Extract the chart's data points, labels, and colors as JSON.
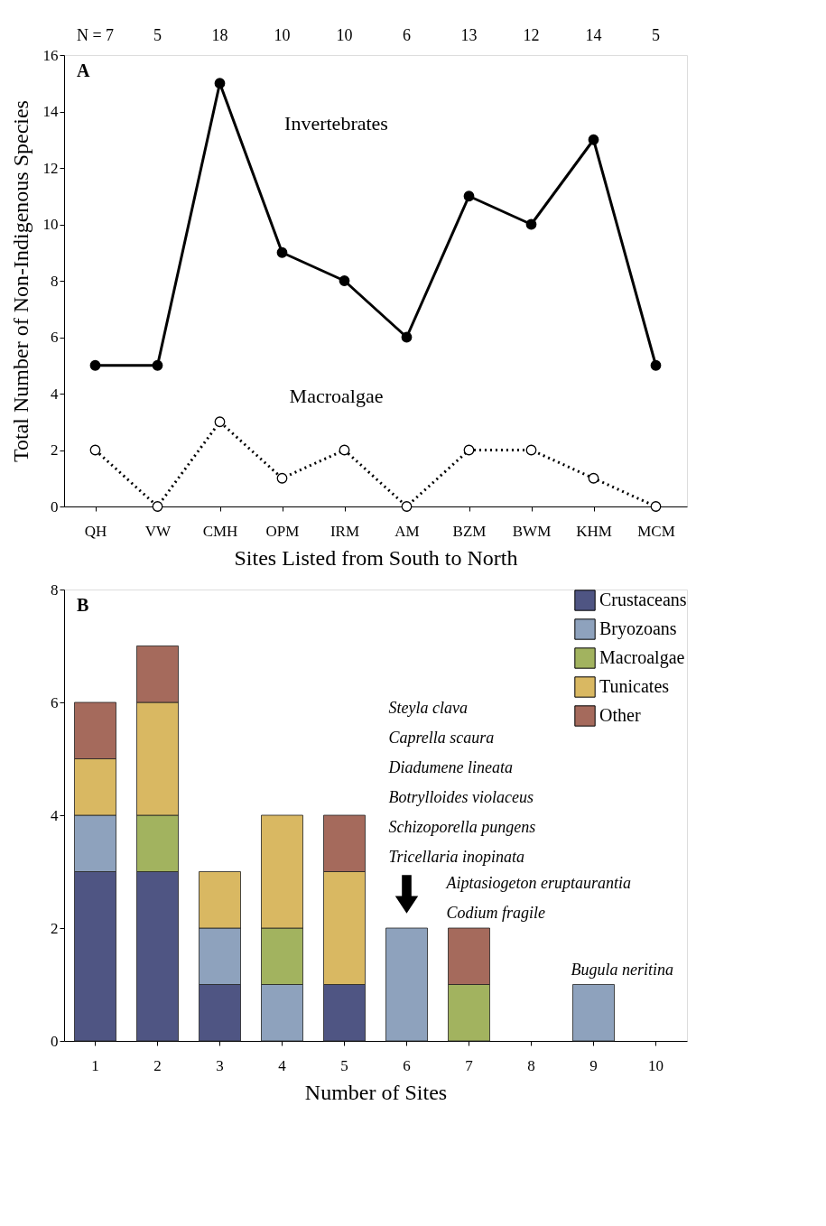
{
  "chart_data": [
    {
      "type": "line",
      "categories": [
        "QH",
        "VW",
        "CMH",
        "OPM",
        "IRM",
        "AM",
        "BZM",
        "BWM",
        "KHM",
        "MCM"
      ],
      "xlabel": "Sites Listed from South to North",
      "ylabel": "Total Number of Non-Indigenous Species",
      "ylim": [
        0,
        16
      ],
      "yticks": [
        0,
        2,
        4,
        6,
        8,
        10,
        12,
        14,
        16
      ],
      "grid": false,
      "marker": "circle",
      "series": [
        {
          "name": "Invertebrates",
          "color": "#000000",
          "line_style": "solid",
          "values": [
            5,
            5,
            15,
            9,
            8,
            6,
            11,
            10,
            13,
            5
          ]
        },
        {
          "name": "Macroalgae",
          "color": "#000000",
          "line_style": "dotted",
          "values": [
            2,
            0,
            3,
            1,
            2,
            0,
            2,
            2,
            1,
            0
          ]
        }
      ],
      "annotations": [
        "A",
        "N = 7",
        "5",
        "18",
        "10",
        "10",
        "6",
        "13",
        "12",
        "14",
        "5"
      ]
    },
    {
      "type": "bar",
      "stacked": true,
      "categories": [
        "1",
        "2",
        "3",
        "4",
        "5",
        "6",
        "7",
        "8",
        "9",
        "10"
      ],
      "xlabel": "Number of Sites",
      "ylim": [
        0,
        8
      ],
      "yticks": [
        0,
        2,
        4,
        6,
        8
      ],
      "grid": false,
      "legend": "top right",
      "series": [
        {
          "name": "Crustaceans",
          "color": "#4f5583",
          "values": [
            3,
            3,
            1,
            0,
            1,
            0,
            0,
            0,
            0,
            0
          ]
        },
        {
          "name": "Bryozoans",
          "color": "#8ea2bd",
          "values": [
            1,
            0,
            1,
            1,
            0,
            2,
            0,
            0,
            1,
            0
          ]
        },
        {
          "name": "Macroalgae",
          "color": "#a2b35f",
          "values": [
            0,
            1,
            0,
            1,
            0,
            0,
            1,
            0,
            0,
            0
          ]
        },
        {
          "name": "Tunicates",
          "color": "#d9b862",
          "values": [
            1,
            2,
            1,
            2,
            2,
            0,
            0,
            0,
            0,
            0
          ]
        },
        {
          "name": "Other",
          "color": "#a56a5c",
          "values": [
            1,
            1,
            0,
            0,
            1,
            0,
            1,
            0,
            0,
            0
          ]
        }
      ],
      "annotations": [
        "B",
        "Steyla clava",
        "Caprella scaura",
        "Diadumene lineata",
        "Botrylloides violaceus",
        "Schizoporella pungens",
        "Tricellaria inopinata",
        "Aiptasiogeton eruptaurantia",
        "Codium fragile",
        "Bugula neritina"
      ]
    }
  ]
}
